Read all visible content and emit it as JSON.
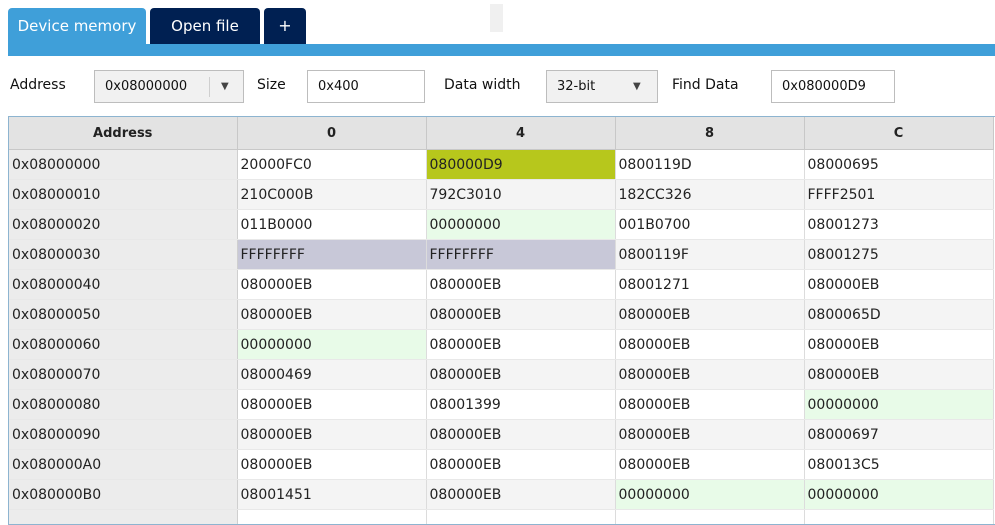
{
  "tabs": [
    {
      "label": "Device memory",
      "active": true
    },
    {
      "label": "Open file",
      "active": false
    },
    {
      "label": "+",
      "active": false
    }
  ],
  "toolbar": {
    "address_label": "Address",
    "address_value": "0x08000000",
    "size_label": "Size",
    "size_value": "0x400",
    "data_width_label": "Data width",
    "data_width_value": "32-bit",
    "find_label": "Find Data",
    "find_value": "0x080000D9"
  },
  "colors": {
    "tab_active": "#3f9fd9",
    "tab_inactive": "#002052",
    "match_highlight": "#b7c71c",
    "zero_highlight": "#e8fbe8",
    "ff_highlight": "#c8c8d8"
  },
  "table": {
    "headers": [
      "Address",
      "0",
      "4",
      "8",
      "C"
    ],
    "rows": [
      {
        "address": "0x08000000",
        "cells": [
          "20000FC0",
          "080000D9",
          "0800119D",
          "08000695"
        ]
      },
      {
        "address": "0x08000010",
        "cells": [
          "210C000B",
          "792C3010",
          "182CC326",
          "FFFF2501"
        ]
      },
      {
        "address": "0x08000020",
        "cells": [
          "011B0000",
          "00000000",
          "001B0700",
          "08001273"
        ]
      },
      {
        "address": "0x08000030",
        "cells": [
          "FFFFFFFF",
          "FFFFFFFF",
          "0800119F",
          "08001275"
        ]
      },
      {
        "address": "0x08000040",
        "cells": [
          "080000EB",
          "080000EB",
          "08001271",
          "080000EB"
        ]
      },
      {
        "address": "0x08000050",
        "cells": [
          "080000EB",
          "080000EB",
          "080000EB",
          "0800065D"
        ]
      },
      {
        "address": "0x08000060",
        "cells": [
          "00000000",
          "080000EB",
          "080000EB",
          "080000EB"
        ]
      },
      {
        "address": "0x08000070",
        "cells": [
          "08000469",
          "080000EB",
          "080000EB",
          "080000EB"
        ]
      },
      {
        "address": "0x08000080",
        "cells": [
          "080000EB",
          "08001399",
          "080000EB",
          "00000000"
        ]
      },
      {
        "address": "0x08000090",
        "cells": [
          "080000EB",
          "080000EB",
          "080000EB",
          "08000697"
        ]
      },
      {
        "address": "0x080000A0",
        "cells": [
          "080000EB",
          "080000EB",
          "080000EB",
          "080013C5"
        ]
      },
      {
        "address": "0x080000B0",
        "cells": [
          "08001451",
          "080000EB",
          "00000000",
          "00000000"
        ]
      },
      {
        "address": "",
        "cells": [
          "",
          "",
          "",
          ""
        ]
      }
    ]
  }
}
